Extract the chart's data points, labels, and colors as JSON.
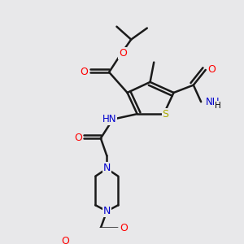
{
  "bg_color": "#e8e8ea",
  "atom_colors": {
    "C": "#000000",
    "H": "#000000",
    "N": "#0000cd",
    "O": "#ff0000",
    "S": "#aaaa00"
  },
  "bond_color": "#1a1a1a",
  "bond_width": 1.8,
  "label_fontsize": 8.5
}
